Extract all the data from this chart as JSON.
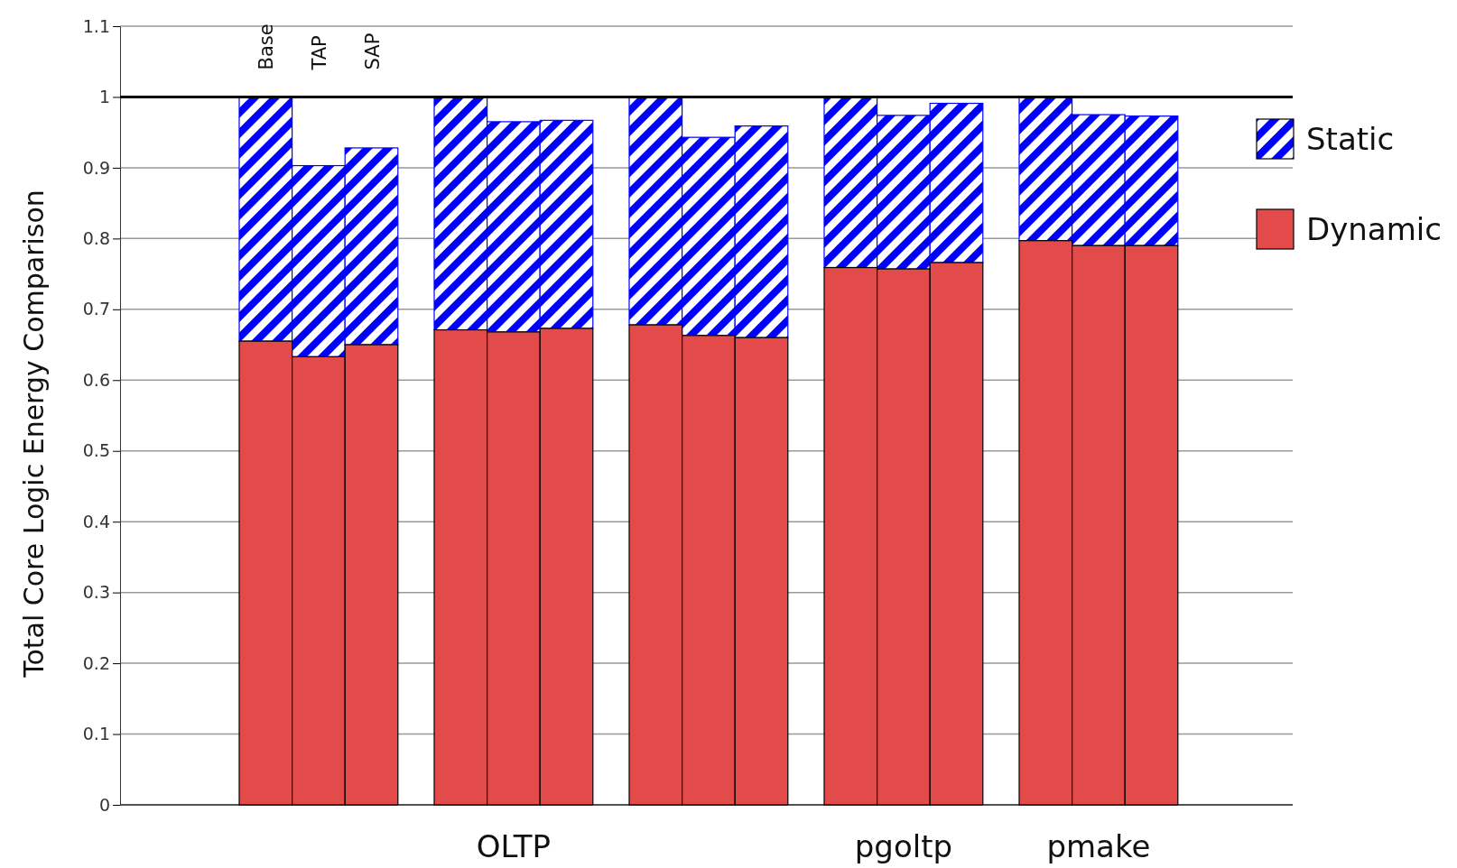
{
  "chart_data": {
    "type": "bar",
    "ylabel": "Total Core Logic Energy Comparison",
    "categories": [
      null,
      null,
      null,
      null,
      "OLTP",
      null,
      null,
      null,
      null,
      null,
      "pgoltp",
      null,
      null,
      "pmake",
      null
    ],
    "series": [
      {
        "name": "Dynamic",
        "color": "#e34a4a",
        "values": [
          0.655,
          0.633,
          0.65,
          0.671,
          0.668,
          0.673,
          0.678,
          0.663,
          0.66,
          0.759,
          0.757,
          0.766,
          0.797,
          0.79,
          0.79
        ]
      },
      {
        "name": "Static",
        "color": "#0000ff",
        "values": [
          0.345,
          0.27,
          0.278,
          0.329,
          0.297,
          0.294,
          0.322,
          0.28,
          0.299,
          0.241,
          0.217,
          0.225,
          0.203,
          0.185,
          0.183
        ]
      }
    ],
    "stacked": true,
    "ylim": [
      0,
      1.1
    ],
    "yticks": [
      0,
      0.1,
      0.2,
      0.3,
      0.4,
      0.5,
      0.6,
      0.7,
      0.8,
      0.9,
      1,
      1.1
    ],
    "grid": "y",
    "legend": "right",
    "ref_lines": [
      {
        "axis": "y",
        "value": 1,
        "color": "#000000"
      }
    ],
    "annotations": [
      "Base",
      "TAP",
      "SAP"
    ]
  }
}
